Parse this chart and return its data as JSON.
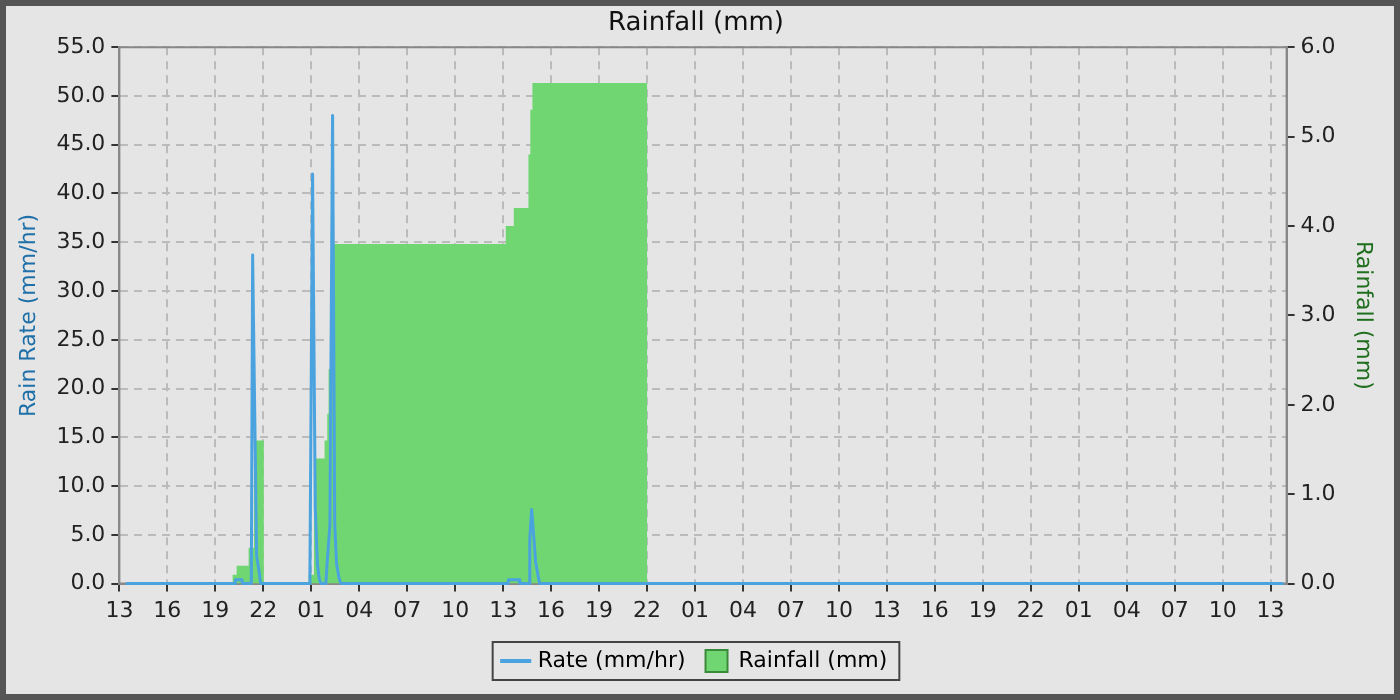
{
  "chart_data": {
    "type": "line",
    "title": "Rainfall (mm)",
    "ylabel": "Rain Rate (mm/hr)",
    "y2label": "Rainfall (mm)",
    "xlim": [
      "--01-01T13:00",
      "--01-04T14:00"
    ],
    "xticks": [
      {
        "value": "--01-01T13:00",
        "label": "13"
      },
      {
        "value": "--01-01T16:00",
        "label": "16"
      },
      {
        "value": "--01-01T19:00",
        "label": "19"
      },
      {
        "value": "--01-01T22:00",
        "label": "22"
      },
      {
        "value": "--01-02T01:00",
        "label": "01"
      },
      {
        "value": "--01-02T04:00",
        "label": "04"
      },
      {
        "value": "--01-02T07:00",
        "label": "07"
      },
      {
        "value": "--01-02T10:00",
        "label": "10"
      },
      {
        "value": "--01-02T13:00",
        "label": "13"
      },
      {
        "value": "--01-02T16:00",
        "label": "16"
      },
      {
        "value": "--01-02T19:00",
        "label": "19"
      },
      {
        "value": "--01-02T22:00",
        "label": "22"
      },
      {
        "value": "--01-03T01:00",
        "label": "01"
      },
      {
        "value": "--01-03T04:00",
        "label": "04"
      },
      {
        "value": "--01-03T07:00",
        "label": "07"
      },
      {
        "value": "--01-03T10:00",
        "label": "10"
      },
      {
        "value": "--01-03T13:00",
        "label": "13"
      },
      {
        "value": "--01-03T16:00",
        "label": "16"
      },
      {
        "value": "--01-03T19:00",
        "label": "19"
      },
      {
        "value": "--01-03T22:00",
        "label": "22"
      },
      {
        "value": "--01-04T01:00",
        "label": "01"
      },
      {
        "value": "--01-04T04:00",
        "label": "04"
      },
      {
        "value": "--01-04T07:00",
        "label": "07"
      },
      {
        "value": "--01-04T10:00",
        "label": "10"
      },
      {
        "value": "--01-04T13:00",
        "label": "13"
      }
    ],
    "ylim": [
      0,
      55
    ],
    "yticks": [
      {
        "value": 0,
        "label": "0.0"
      },
      {
        "value": 5,
        "label": "5.0"
      },
      {
        "value": 10,
        "label": "10.0"
      },
      {
        "value": 15,
        "label": "15.0"
      },
      {
        "value": 20,
        "label": "20.0"
      },
      {
        "value": 25,
        "label": "25.0"
      },
      {
        "value": 30,
        "label": "30.0"
      },
      {
        "value": 35,
        "label": "35.0"
      },
      {
        "value": 40,
        "label": "40.0"
      },
      {
        "value": 45,
        "label": "45.0"
      },
      {
        "value": 50,
        "label": "50.0"
      },
      {
        "value": 55,
        "label": "55.0"
      }
    ],
    "y2lim": [
      0,
      6
    ],
    "y2ticks": [
      {
        "value": 0,
        "label": "0.0"
      },
      {
        "value": 1,
        "label": "1.0"
      },
      {
        "value": 2,
        "label": "2.0"
      },
      {
        "value": 3,
        "label": "3.0"
      },
      {
        "value": 4,
        "label": "4.0"
      },
      {
        "value": 5,
        "label": "5.0"
      },
      {
        "value": 6,
        "label": "6.0"
      }
    ],
    "grid": true,
    "legend": "bottom",
    "marker": "none",
    "line_style": "solid",
    "series": [
      {
        "name": "Rate (mm/hr)",
        "color": "#4aa3df",
        "x": [
          "--01-01T13:24",
          "--01-01T20:12",
          "--01-01T20:15",
          "--01-01T20:40",
          "--01-01T20:42",
          "--01-01T21:15",
          "--01-01T21:20",
          "--01-01T21:35",
          "--01-01T21:43",
          "--01-01T21:50",
          "--01-02T00:50",
          "--01-02T00:55",
          "--01-02T01:05",
          "--01-02T01:15",
          "--01-02T01:23",
          "--01-02T01:30",
          "--01-02T01:36",
          "--01-02T01:55",
          "--01-02T02:00",
          "--01-02T02:10",
          "--01-02T02:20",
          "--01-02T02:28",
          "--01-02T02:35",
          "--01-02T02:45",
          "--01-02T02:51",
          "--01-02T13:18",
          "--01-02T13:20",
          "--01-02T14:00",
          "--01-02T14:03",
          "--01-02T14:36",
          "--01-02T14:40",
          "--01-02T14:47",
          "--01-02T14:55",
          "--01-02T15:02",
          "--01-02T15:10",
          "--01-02T15:17",
          "--01-04T13:48"
        ],
        "values": [
          0,
          0,
          0.4,
          0.4,
          0,
          0,
          33.7,
          2.8,
          1.5,
          0,
          0,
          0.9,
          42,
          7.8,
          2,
          0.5,
          0,
          0,
          2.3,
          6,
          48,
          6.2,
          2,
          0.5,
          0,
          0,
          0.4,
          0.4,
          0,
          0,
          4.5,
          7.6,
          4.8,
          2.2,
          1,
          0,
          0
        ]
      },
      {
        "name": "Rainfall (mm)",
        "type": "area",
        "axis": "y2",
        "color": "#6fd672",
        "x": [
          "--01-01T13:24",
          "--01-01T20:05",
          "--01-01T20:05",
          "--01-01T20:20",
          "--01-01T20:20",
          "--01-01T21:05",
          "--01-01T21:05",
          "--01-01T21:25",
          "--01-01T21:25",
          "--01-01T22:02",
          "--01-01T22:02",
          "--01-02T00:50",
          "--01-02T00:50",
          "--01-02T01:10",
          "--01-02T01:10",
          "--01-02T01:50",
          "--01-02T01:50",
          "--01-02T02:00",
          "--01-02T02:00",
          "--01-02T02:05",
          "--01-02T02:05",
          "--01-02T02:25",
          "--01-02T02:25",
          "--01-02T13:10",
          "--01-02T13:10",
          "--01-02T13:40",
          "--01-02T13:40",
          "--01-02T14:35",
          "--01-02T14:35",
          "--01-02T14:42",
          "--01-02T14:42",
          "--01-02T14:50",
          "--01-02T14:50",
          "--01-02T22:00",
          "--01-02T22:00",
          "--01-04T13:48"
        ],
        "values": [
          0,
          0,
          0.1,
          0.1,
          0.2,
          0.2,
          0.4,
          0.4,
          1.6,
          1.6,
          0,
          0,
          0.1,
          0.1,
          1.4,
          1.4,
          1.6,
          1.6,
          1.9,
          1.9,
          2.4,
          2.4,
          3.8,
          3.8,
          4.0,
          4.0,
          4.2,
          4.2,
          4.8,
          4.8,
          5.3,
          5.3,
          5.6,
          5.6,
          0,
          0
        ]
      }
    ]
  }
}
